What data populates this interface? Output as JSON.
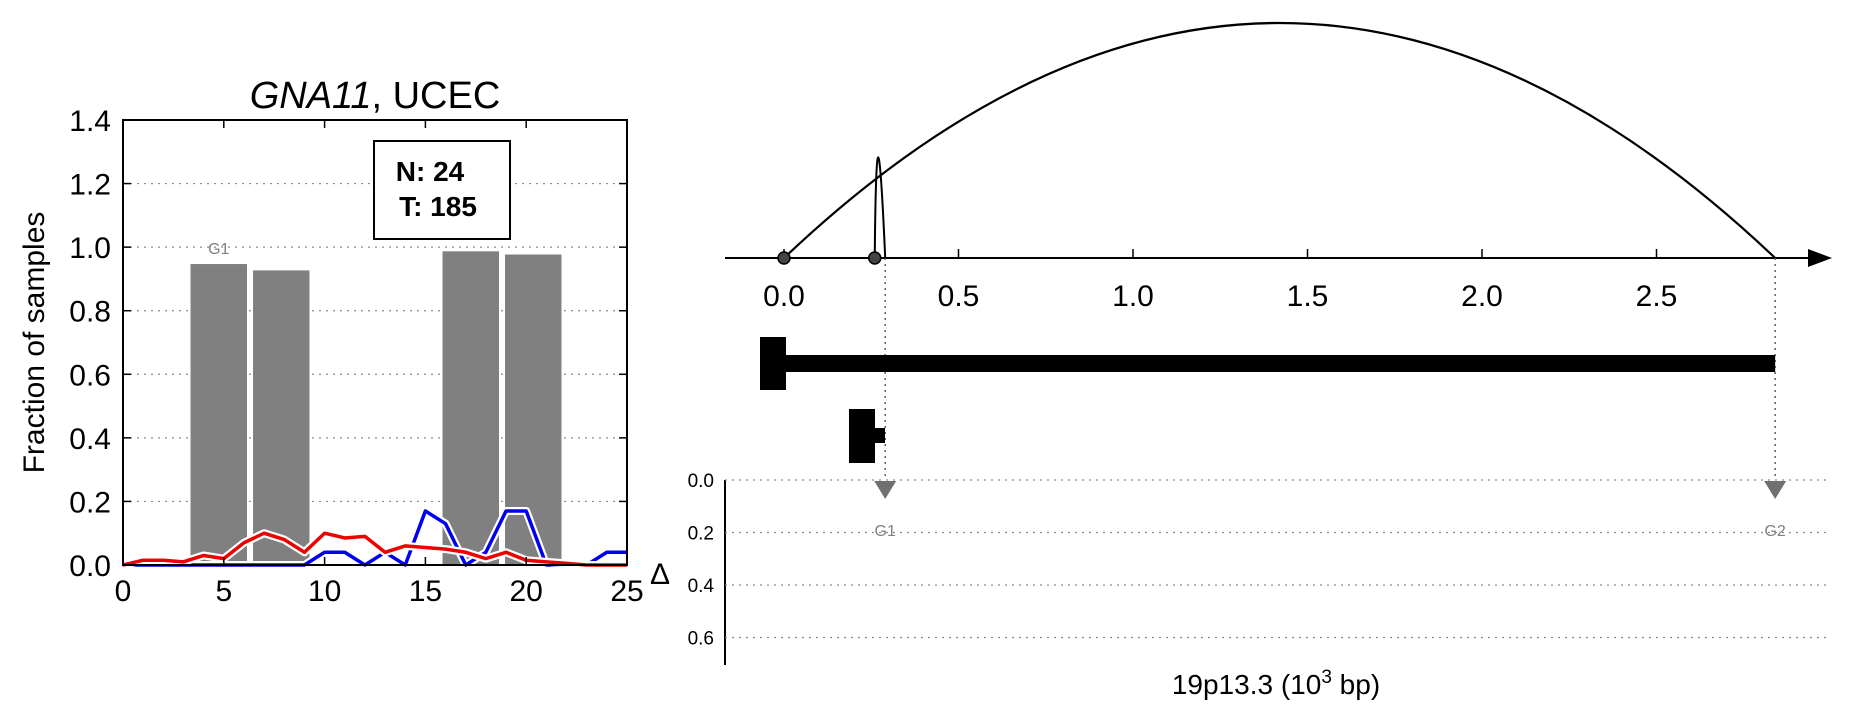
{
  "chart_data": [
    {
      "type": "bar",
      "title_gene": "GNA11",
      "title_rest": ", UCEC",
      "ylabel": "Fraction of samples",
      "xlim": [
        0,
        25
      ],
      "ylim": [
        0,
        1.4
      ],
      "xticks": [
        "0",
        "5",
        "10",
        "15",
        "20",
        "25"
      ],
      "yticks": [
        "0.0",
        "0.2",
        "0.4",
        "0.6",
        "0.8",
        "1.0",
        "1.2",
        "1.4"
      ],
      "grid": "horizontal dotted",
      "bars": [
        {
          "x0": 3.3,
          "x1": 6.2,
          "value": 0.95
        },
        {
          "x0": 6.4,
          "x1": 9.3,
          "value": 0.93
        },
        {
          "x0": 15.8,
          "x1": 18.7,
          "value": 0.99
        },
        {
          "x0": 18.9,
          "x1": 21.8,
          "value": 0.98
        }
      ],
      "bar_label": "G1",
      "stats_box": {
        "n_label": "N: 24",
        "t_label": "T: 185"
      },
      "series": [
        {
          "color": "#0000ee",
          "x": [
            0,
            1,
            2,
            3,
            4,
            5,
            6,
            7,
            8,
            9,
            10,
            11,
            12,
            13,
            14,
            15,
            16,
            17,
            18,
            19,
            20,
            21,
            22,
            23,
            24,
            25
          ],
          "y": [
            0,
            0,
            0,
            0,
            0,
            0,
            0,
            0,
            0,
            0,
            0.04,
            0.04,
            0,
            0.04,
            0,
            0.17,
            0.13,
            0,
            0.04,
            0.17,
            0.17,
            0,
            0,
            0,
            0.04,
            0.04
          ]
        },
        {
          "color": "#ee0000",
          "x": [
            0,
            1,
            2,
            3,
            4,
            5,
            6,
            7,
            8,
            9,
            10,
            11,
            12,
            13,
            14,
            15,
            16,
            17,
            18,
            19,
            20,
            21,
            22,
            23,
            24,
            25
          ],
          "y": [
            0,
            0.015,
            0.015,
            0.01,
            0.03,
            0.02,
            0.07,
            0.1,
            0.08,
            0.04,
            0.1,
            0.085,
            0.09,
            0.04,
            0.06,
            0.055,
            0.05,
            0.04,
            0.02,
            0.04,
            0.015,
            0.01,
            0.005,
            0,
            0,
            0
          ]
        }
      ]
    },
    {
      "type": "genome-track",
      "xlabel_prefix": "19p13.3 (10",
      "xlabel_sup": "3",
      "xlabel_suffix": " bp)",
      "xticks": [
        {
          "v": 0.0,
          "label": "0.0"
        },
        {
          "v": 0.5,
          "label": "0.5"
        },
        {
          "v": 1.0,
          "label": "1.0"
        },
        {
          "v": 1.5,
          "label": "1.5"
        },
        {
          "v": 2.0,
          "label": "2.0"
        },
        {
          "v": 2.5,
          "label": "2.5"
        }
      ],
      "breakpoints": [
        0.0,
        0.26
      ],
      "arcs": [
        {
          "from": 0.0,
          "to": 2.84,
          "height": "large"
        },
        {
          "from": 0.26,
          "to": 0.29,
          "height": "tall-narrow"
        }
      ],
      "genes": [
        {
          "name": "G2",
          "start": 0.0,
          "end": 2.84,
          "marker": 2.84
        },
        {
          "name": "G1",
          "start": 0.2,
          "end": 0.29,
          "marker": 0.29
        }
      ],
      "delta_axis": {
        "label": "Δ",
        "ticks": [
          "0.0",
          "0.2",
          "0.4",
          "0.6"
        ]
      }
    }
  ]
}
